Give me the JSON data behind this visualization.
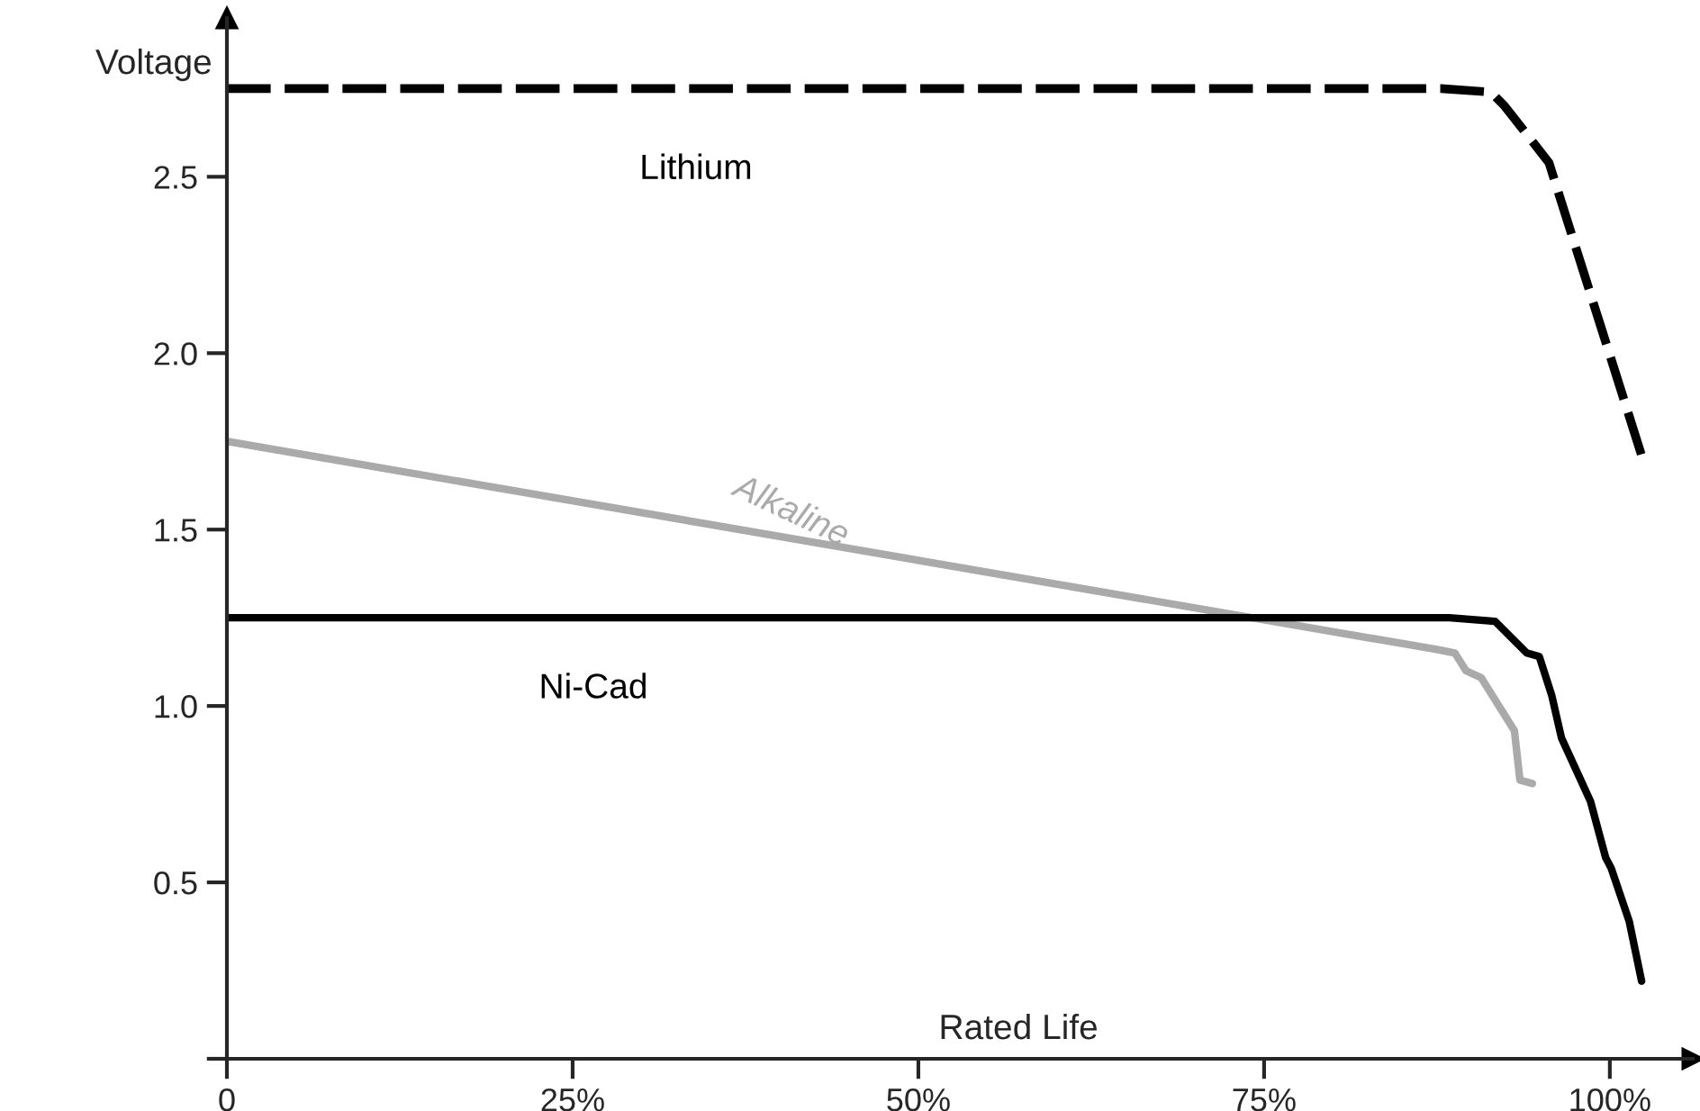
{
  "chart_data": {
    "type": "line",
    "xlabel": "Rated Life",
    "ylabel": "Voltage",
    "xlim": [
      0,
      106
    ],
    "ylim": [
      0,
      2.95
    ],
    "xticks": [
      {
        "value": 0,
        "label": "0"
      },
      {
        "value": 25,
        "label": "25%"
      },
      {
        "value": 50,
        "label": "50%"
      },
      {
        "value": 75,
        "label": "75%"
      },
      {
        "value": 100,
        "label": "100%"
      }
    ],
    "yticks": [
      {
        "value": 0,
        "label": null
      },
      {
        "value": 0.5,
        "label": "0.5"
      },
      {
        "value": 1.0,
        "label": "1.0"
      },
      {
        "value": 1.5,
        "label": "1.5"
      },
      {
        "value": 2.0,
        "label": "2.0"
      },
      {
        "value": 2.5,
        "label": "2.5"
      }
    ],
    "grid": false,
    "legend": false,
    "marker": "none",
    "series": [
      {
        "name": "Lithium",
        "color": "#000000",
        "line_style": "dashed",
        "x": [
          0,
          87.8,
          91.4,
          92.4,
          95.6,
          96.0,
          102.3
        ],
        "values": [
          2.75,
          2.75,
          2.74,
          2.7,
          2.54,
          2.49,
          1.71
        ]
      },
      {
        "name": "Alkaline",
        "color": "#aaaaaa",
        "line_style": "solid",
        "x": [
          0,
          87.5,
          88.8,
          89.6,
          90.7,
          93.1,
          93.5,
          94.4
        ],
        "values": [
          1.75,
          1.16,
          1.15,
          1.1,
          1.08,
          0.93,
          0.79,
          0.78
        ]
      },
      {
        "name": "Ni-Cad",
        "color": "#000000",
        "line_style": "solid",
        "x": [
          0,
          88.4,
          91.7,
          94.0,
          94.9,
          95.8,
          96.5,
          98.6,
          99.7,
          100.1,
          101.4,
          102.3
        ],
        "values": [
          1.25,
          1.25,
          1.24,
          1.15,
          1.14,
          1.03,
          0.91,
          0.73,
          0.57,
          0.54,
          0.39,
          0.22
        ]
      }
    ]
  }
}
